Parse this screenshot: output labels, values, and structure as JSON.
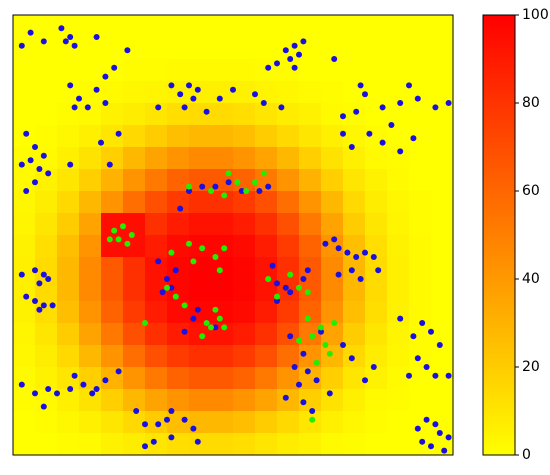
{
  "chart_data": {
    "type": "heatmap-scatter",
    "xlim": [
      0,
      100
    ],
    "ylim": [
      0,
      100
    ],
    "clim": [
      0,
      100
    ],
    "colormap": [
      "#ffff00",
      "#ff0000"
    ],
    "colorbar_ticks": [
      0,
      20,
      40,
      60,
      80,
      100
    ],
    "z": [
      [
        0,
        0,
        0,
        0,
        0,
        0,
        0,
        0,
        0,
        0,
        0,
        0,
        0,
        0,
        0,
        0,
        0,
        0,
        0,
        0
      ],
      [
        0,
        0,
        0,
        0,
        0,
        0,
        0,
        0,
        0,
        0,
        0,
        0,
        0,
        0,
        0,
        0,
        0,
        0,
        0,
        0
      ],
      [
        0,
        0,
        0,
        0,
        0,
        1,
        1,
        2,
        2,
        2,
        2,
        1,
        1,
        0,
        0,
        0,
        0,
        0,
        0,
        0
      ],
      [
        0,
        0,
        0,
        1,
        2,
        3,
        4,
        5,
        6,
        6,
        5,
        4,
        3,
        2,
        1,
        0,
        0,
        0,
        0,
        0
      ],
      [
        0,
        0,
        1,
        2,
        5,
        7,
        10,
        13,
        14,
        14,
        13,
        10,
        7,
        5,
        2,
        1,
        0,
        0,
        0,
        0
      ],
      [
        0,
        1,
        3,
        6,
        10,
        15,
        20,
        25,
        28,
        28,
        25,
        20,
        15,
        10,
        6,
        3,
        1,
        0,
        0,
        0
      ],
      [
        1,
        2,
        6,
        11,
        19,
        28,
        36,
        42,
        46,
        46,
        42,
        36,
        28,
        19,
        11,
        6,
        2,
        1,
        0,
        0
      ],
      [
        2,
        5,
        10,
        19,
        30,
        42,
        53,
        61,
        65,
        65,
        61,
        53,
        42,
        30,
        19,
        10,
        5,
        2,
        0,
        0
      ],
      [
        3,
        7,
        15,
        28,
        42,
        57,
        69,
        77,
        81,
        81,
        77,
        69,
        57,
        42,
        28,
        15,
        7,
        3,
        1,
        0
      ],
      [
        4,
        10,
        20,
        36,
        95,
        95,
        81,
        89,
        93,
        93,
        89,
        81,
        69,
        53,
        36,
        20,
        10,
        4,
        1,
        0
      ],
      [
        5,
        13,
        25,
        42,
        95,
        95,
        89,
        96,
        98,
        98,
        96,
        89,
        77,
        61,
        42,
        25,
        13,
        5,
        2,
        0
      ],
      [
        6,
        14,
        28,
        46,
        65,
        81,
        93,
        98,
        100,
        100,
        98,
        93,
        81,
        65,
        46,
        28,
        14,
        6,
        2,
        0
      ],
      [
        6,
        14,
        28,
        46,
        65,
        81,
        93,
        98,
        100,
        100,
        98,
        93,
        81,
        65,
        46,
        28,
        14,
        6,
        2,
        0
      ],
      [
        5,
        13,
        25,
        42,
        61,
        77,
        89,
        96,
        98,
        98,
        96,
        89,
        77,
        61,
        42,
        25,
        13,
        5,
        2,
        0
      ],
      [
        4,
        10,
        20,
        36,
        53,
        69,
        81,
        89,
        93,
        93,
        89,
        81,
        69,
        53,
        36,
        20,
        10,
        4,
        1,
        0
      ],
      [
        3,
        7,
        15,
        28,
        42,
        57,
        69,
        77,
        81,
        81,
        77,
        69,
        57,
        42,
        28,
        15,
        7,
        3,
        1,
        0
      ],
      [
        2,
        5,
        10,
        19,
        30,
        42,
        53,
        61,
        65,
        65,
        61,
        53,
        42,
        30,
        19,
        10,
        5,
        2,
        0,
        0
      ],
      [
        1,
        2,
        6,
        11,
        19,
        28,
        36,
        42,
        46,
        46,
        42,
        36,
        28,
        19,
        11,
        6,
        2,
        1,
        0,
        0
      ],
      [
        0,
        1,
        3,
        6,
        10,
        15,
        20,
        25,
        28,
        28,
        25,
        20,
        15,
        10,
        6,
        3,
        1,
        0,
        0,
        0
      ],
      [
        0,
        0,
        1,
        2,
        5,
        7,
        10,
        13,
        14,
        14,
        13,
        10,
        7,
        5,
        2,
        1,
        0,
        0,
        0,
        0
      ]
    ],
    "series": [
      {
        "color": "#1a10e0",
        "x": [
          2,
          4,
          7,
          11,
          12,
          13,
          14,
          19,
          21,
          23,
          26,
          19,
          21,
          14,
          15,
          17,
          13,
          36,
          38,
          40,
          41,
          42,
          39,
          44,
          33,
          47,
          50,
          55,
          57,
          61,
          62,
          64,
          63,
          65,
          66,
          64,
          58,
          60,
          73,
          79,
          80,
          84,
          88,
          92,
          90,
          78,
          75,
          81,
          84,
          86,
          88,
          91,
          75,
          77,
          96,
          99,
          3,
          5,
          4,
          6,
          5,
          7,
          3,
          8,
          2,
          13,
          20,
          24,
          22,
          40,
          43,
          46,
          49,
          52,
          56,
          58,
          38,
          33,
          35,
          34,
          36,
          37,
          42,
          44,
          46,
          41,
          39,
          59,
          60,
          62,
          63,
          66,
          67,
          60,
          71,
          74,
          76,
          78,
          80,
          82,
          77,
          79,
          83,
          74,
          73,
          5,
          6,
          7,
          8,
          5,
          6,
          7,
          9,
          3,
          2,
          63,
          66,
          64,
          67,
          69,
          65,
          66,
          68,
          72,
          62,
          70,
          75,
          77,
          80,
          82,
          2,
          5,
          8,
          10,
          13,
          14,
          16,
          18,
          19,
          21,
          24,
          7,
          28,
          30,
          33,
          35,
          36,
          39,
          41,
          36,
          32,
          42,
          30,
          92,
          94,
          96,
          97,
          99,
          93,
          95,
          98,
          91,
          93,
          95,
          97,
          92,
          94,
          96,
          99,
          90,
          88
        ],
        "y": [
          93,
          96,
          94,
          97,
          94,
          95,
          93,
          95,
          86,
          88,
          92,
          83,
          80,
          79,
          81,
          79,
          84,
          84,
          82,
          84,
          81,
          83,
          79,
          78,
          79,
          81,
          83,
          82,
          80,
          79,
          92,
          93,
          90,
          91,
          94,
          88,
          88,
          89,
          90,
          84,
          82,
          79,
          80,
          81,
          84,
          78,
          77,
          73,
          71,
          75,
          69,
          72,
          73,
          70,
          79,
          80,
          73,
          70,
          67,
          65,
          62,
          68,
          60,
          64,
          66,
          66,
          71,
          73,
          66,
          60,
          61,
          61,
          62,
          60,
          60,
          61,
          56,
          44,
          40,
          37,
          38,
          42,
          33,
          30,
          29,
          31,
          28,
          43,
          39,
          38,
          37,
          40,
          42,
          35,
          48,
          47,
          46,
          45,
          46,
          45,
          42,
          40,
          42,
          41,
          49,
          42,
          39,
          41,
          40,
          35,
          33,
          34,
          34,
          36,
          41,
          27,
          23,
          20,
          19,
          17,
          16,
          12,
          10,
          14,
          13,
          28,
          25,
          22,
          17,
          20,
          16,
          14,
          15,
          14,
          15,
          18,
          16,
          14,
          15,
          17,
          19,
          11,
          10,
          7,
          7,
          8,
          10,
          8,
          6,
          4,
          3,
          3,
          2,
          6,
          8,
          7,
          5,
          4,
          3,
          2,
          1,
          27,
          30,
          28,
          25,
          22,
          20,
          18,
          18,
          18,
          31
        ]
      },
      {
        "color": "#22ee00",
        "x": [
          40,
          45,
          48,
          51,
          53,
          55,
          57,
          49,
          23,
          24,
          25,
          26,
          27,
          22,
          36,
          40,
          43,
          46,
          48,
          35,
          37,
          39,
          44,
          45,
          47,
          48,
          46,
          43,
          30,
          41,
          47,
          58,
          60,
          63,
          65,
          67,
          68,
          70,
          71,
          72,
          69,
          67,
          73,
          65,
          68
        ],
        "y": [
          61,
          60,
          59,
          62,
          60,
          62,
          64,
          64,
          51,
          49,
          52,
          48,
          50,
          49,
          46,
          48,
          47,
          45,
          47,
          38,
          36,
          34,
          30,
          29,
          31,
          29,
          33,
          27,
          30,
          44,
          42,
          40,
          36,
          41,
          38,
          37,
          27,
          29,
          25,
          23,
          21,
          31,
          30,
          26,
          8
        ]
      }
    ]
  }
}
